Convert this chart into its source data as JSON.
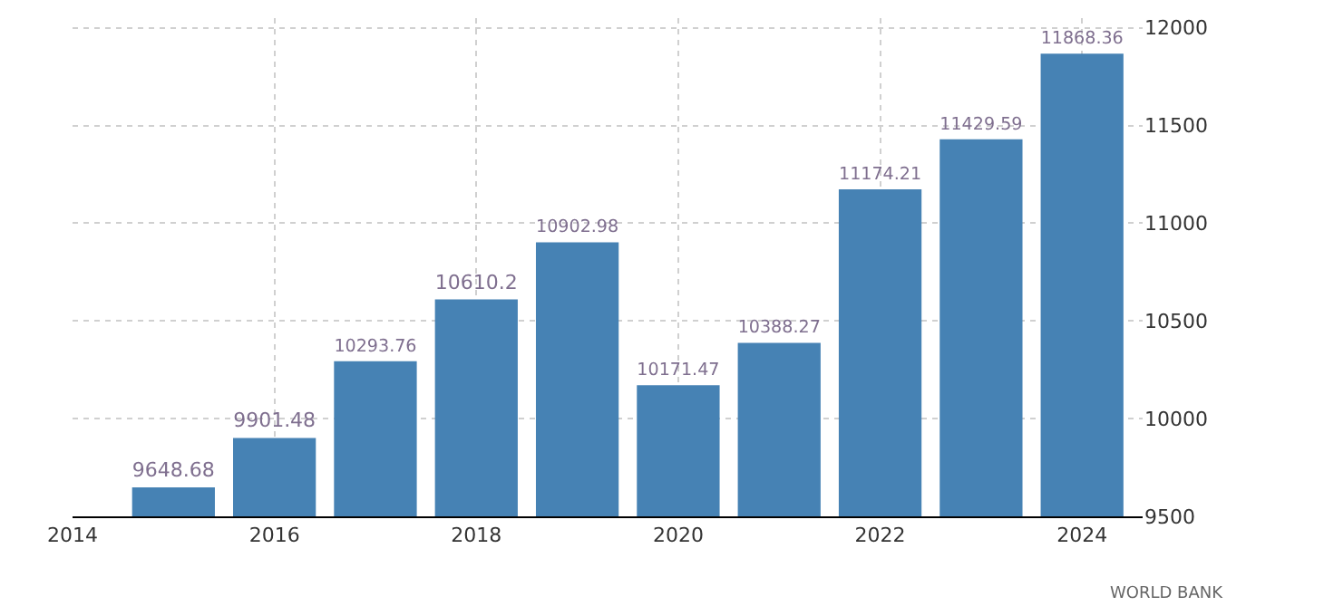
{
  "chart_data": {
    "type": "bar",
    "x": [
      2015,
      2016,
      2017,
      2018,
      2019,
      2020,
      2021,
      2022,
      2023,
      2024
    ],
    "values": [
      9648.68,
      9901.48,
      10293.76,
      10610.2,
      10902.98,
      10171.47,
      10388.27,
      11174.21,
      11429.59,
      11868.36
    ],
    "color": "#4682b4",
    "data_labels": true,
    "xlim": [
      2014,
      2024.6
    ],
    "xticks": [
      2014,
      2016,
      2018,
      2020,
      2022,
      2024
    ],
    "ylim": [
      9500,
      12050
    ],
    "yticks": [
      9500,
      10000,
      10500,
      11000,
      11500,
      12000
    ],
    "grid": true,
    "annotations": [
      "WORLD BANK"
    ]
  }
}
